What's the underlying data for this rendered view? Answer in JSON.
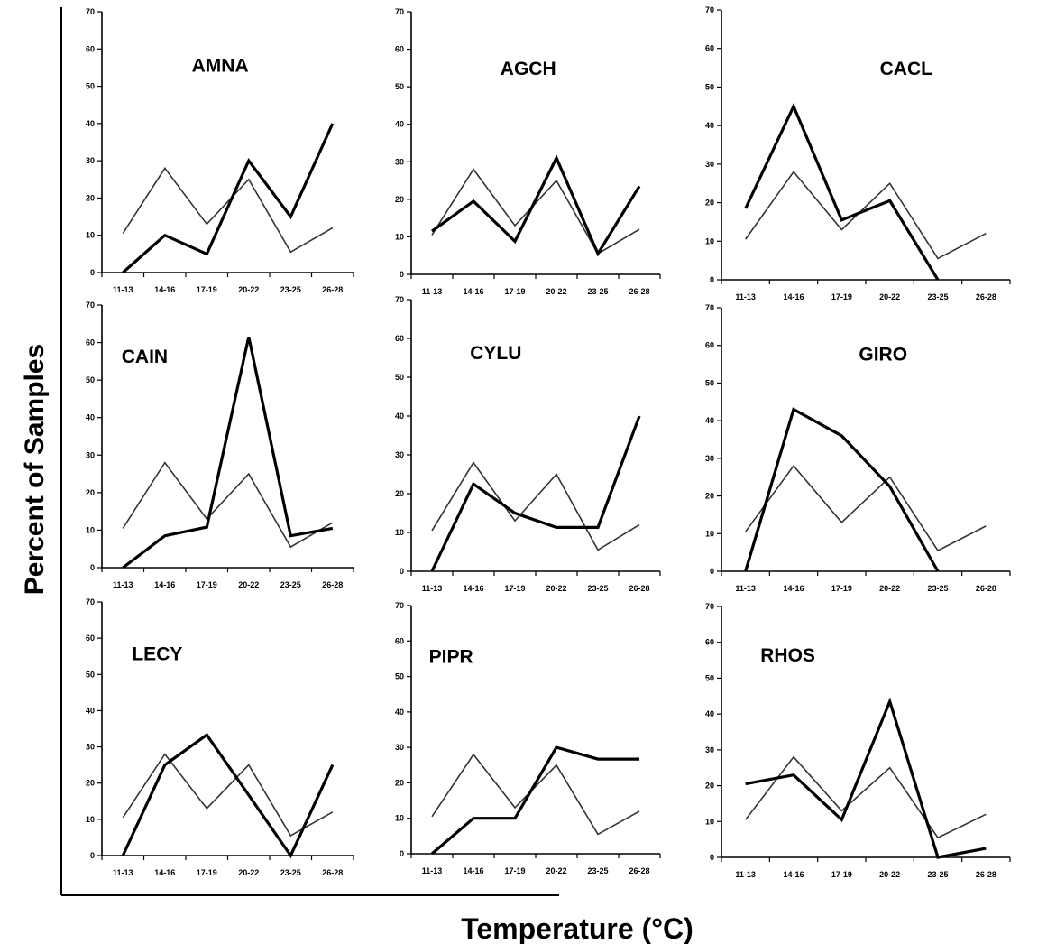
{
  "figure": {
    "ylabel": "Percent of Samples",
    "xlabel": "Temperature (°C)"
  },
  "chart_data": [
    {
      "type": "line",
      "title": "AMNA",
      "categories": [
        "11-13",
        "14-16",
        "17-19",
        "20-22",
        "23-25",
        "26-28"
      ],
      "yticks": [
        0,
        10,
        20,
        30,
        40,
        50,
        60,
        70
      ],
      "ylim": [
        0,
        70
      ],
      "series": [
        {
          "values": [
            10.5,
            28,
            13,
            25,
            5.5,
            12
          ],
          "style": "thin"
        },
        {
          "values": [
            0,
            10,
            5,
            30,
            15,
            40
          ],
          "style": "thick"
        }
      ]
    },
    {
      "type": "line",
      "title": "AGCH",
      "categories": [
        "11-13",
        "14-16",
        "17-19",
        "20-22",
        "23-25",
        "26-28"
      ],
      "yticks": [
        0,
        10,
        20,
        30,
        40,
        50,
        60,
        70
      ],
      "ylim": [
        0,
        70
      ],
      "series": [
        {
          "values": [
            10.5,
            28,
            13,
            25,
            5.5,
            12
          ],
          "style": "thin"
        },
        {
          "values": [
            11.5,
            19.5,
            8.8,
            31,
            5.5,
            23.5
          ],
          "style": "thick"
        }
      ]
    },
    {
      "type": "line",
      "title": "CACL",
      "categories": [
        "11-13",
        "14-16",
        "17-19",
        "20-22",
        "23-25",
        "26-28"
      ],
      "yticks": [
        0,
        10,
        20,
        30,
        40,
        50,
        60,
        70
      ],
      "ylim": [
        0,
        70
      ],
      "series": [
        {
          "values": [
            10.5,
            28,
            13,
            25,
            5.5,
            12
          ],
          "style": "thin"
        },
        {
          "values": [
            18.5,
            45,
            15.5,
            20.5,
            0,
            null
          ],
          "style": "thick"
        }
      ]
    },
    {
      "type": "line",
      "title": "CAIN",
      "categories": [
        "11-13",
        "14-16",
        "17-19",
        "20-22",
        "23-25",
        "26-28"
      ],
      "yticks": [
        0,
        10,
        20,
        30,
        40,
        50,
        60,
        70
      ],
      "ylim": [
        0,
        70
      ],
      "series": [
        {
          "values": [
            10.5,
            28,
            13,
            25,
            5.5,
            12
          ],
          "style": "thin"
        },
        {
          "values": [
            0,
            8.5,
            10.8,
            61.5,
            8.5,
            10.5
          ],
          "style": "thick"
        }
      ]
    },
    {
      "type": "line",
      "title": "CYLU",
      "categories": [
        "11-13",
        "14-16",
        "17-19",
        "20-22",
        "23-25",
        "26-28"
      ],
      "yticks": [
        0,
        10,
        20,
        30,
        40,
        50,
        60,
        70
      ],
      "ylim": [
        0,
        70
      ],
      "series": [
        {
          "values": [
            10.5,
            28,
            13,
            25,
            5.5,
            12
          ],
          "style": "thin"
        },
        {
          "values": [
            0,
            22.5,
            15,
            11.3,
            11.3,
            40
          ],
          "style": "thick"
        }
      ]
    },
    {
      "type": "line",
      "title": "GIRO",
      "categories": [
        "11-13",
        "14-16",
        "17-19",
        "20-22",
        "23-25",
        "26-28"
      ],
      "yticks": [
        0,
        10,
        20,
        30,
        40,
        50,
        60,
        70
      ],
      "ylim": [
        0,
        70
      ],
      "series": [
        {
          "values": [
            10.5,
            28,
            13,
            25,
            5.5,
            12
          ],
          "style": "thin"
        },
        {
          "values": [
            0,
            43,
            36,
            22.5,
            0,
            null
          ],
          "style": "thick"
        }
      ]
    },
    {
      "type": "line",
      "title": "LECY",
      "categories": [
        "11-13",
        "14-16",
        "17-19",
        "20-22",
        "23-25",
        "26-28"
      ],
      "yticks": [
        0,
        10,
        20,
        30,
        40,
        50,
        60,
        70
      ],
      "ylim": [
        0,
        70
      ],
      "series": [
        {
          "values": [
            10.5,
            28,
            13,
            25,
            5.5,
            12
          ],
          "style": "thin"
        },
        {
          "values": [
            0,
            25,
            33.3,
            16.7,
            0,
            25
          ],
          "style": "thick"
        }
      ]
    },
    {
      "type": "line",
      "title": "PIPR",
      "categories": [
        "11-13",
        "14-16",
        "17-19",
        "20-22",
        "23-25",
        "26-28"
      ],
      "yticks": [
        0,
        10,
        20,
        30,
        40,
        50,
        60,
        70
      ],
      "ylim": [
        0,
        70
      ],
      "series": [
        {
          "values": [
            10.5,
            28,
            13,
            25,
            5.5,
            12
          ],
          "style": "thin"
        },
        {
          "values": [
            0,
            10,
            10,
            30,
            26.7,
            26.7
          ],
          "style": "thick"
        }
      ]
    },
    {
      "type": "line",
      "title": "RHOS",
      "categories": [
        "11-13",
        "14-16",
        "17-19",
        "20-22",
        "23-25",
        "26-28"
      ],
      "yticks": [
        0,
        10,
        20,
        30,
        40,
        50,
        60,
        70
      ],
      "ylim": [
        0,
        70
      ],
      "series": [
        {
          "values": [
            10.5,
            28,
            13,
            25,
            5.5,
            12
          ],
          "style": "thin"
        },
        {
          "values": [
            20.5,
            23,
            10.5,
            43.5,
            0,
            2.5
          ],
          "style": "thick"
        }
      ]
    }
  ]
}
